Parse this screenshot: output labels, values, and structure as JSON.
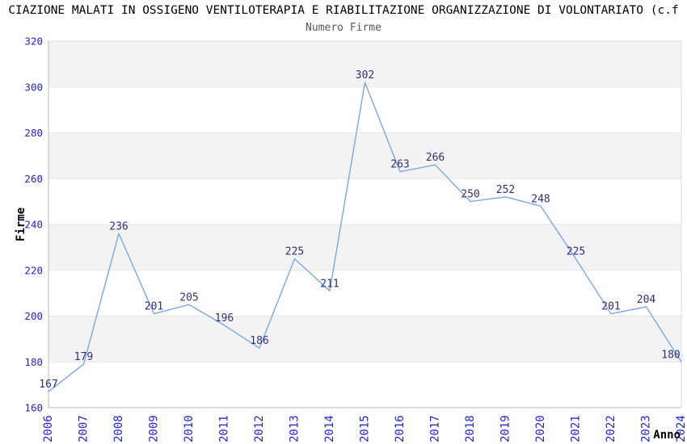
{
  "header": {
    "title": "CIAZIONE MALATI IN OSSIGENO VENTILOTERAPIA E RIABILITAZIONE ORGANIZZAZIONE DI VOLONTARIATO (c.f",
    "subtitle": "Numero Firme"
  },
  "chart_data": {
    "type": "line",
    "title": "Numero Firme",
    "xlabel": "Anno",
    "ylabel": "Firme",
    "x": [
      "2006",
      "2007",
      "2008",
      "2009",
      "2010",
      "2011",
      "2012",
      "2013",
      "2014",
      "2015",
      "2016",
      "2017",
      "2018",
      "2019",
      "2020",
      "2021",
      "2022",
      "2023",
      "2024"
    ],
    "series": [
      {
        "name": "Numero Firme",
        "values": [
          167,
          179,
          236,
          201,
          205,
          196,
          186,
          225,
          211,
          302,
          263,
          266,
          250,
          252,
          248,
          225,
          201,
          204,
          180
        ]
      }
    ],
    "ylim": [
      160,
      320
    ],
    "yticks": [
      160,
      180,
      200,
      220,
      240,
      260,
      280,
      300,
      320
    ],
    "grid": "horizontal-alternating-bands",
    "legend_position": "none",
    "data_labels_visible": true,
    "colors": {
      "line": "#79a8e6",
      "tick_label": "#2323d1",
      "data_label": "#30307a",
      "band_gray": "#f3f3f3",
      "band_white": "#ffffff",
      "gridline": "#e7e7e7",
      "axis_line": "#bbbbbb",
      "plot_border": "#dcdcdc",
      "title_color": "#000000",
      "subtitle_color": "#595959"
    }
  }
}
